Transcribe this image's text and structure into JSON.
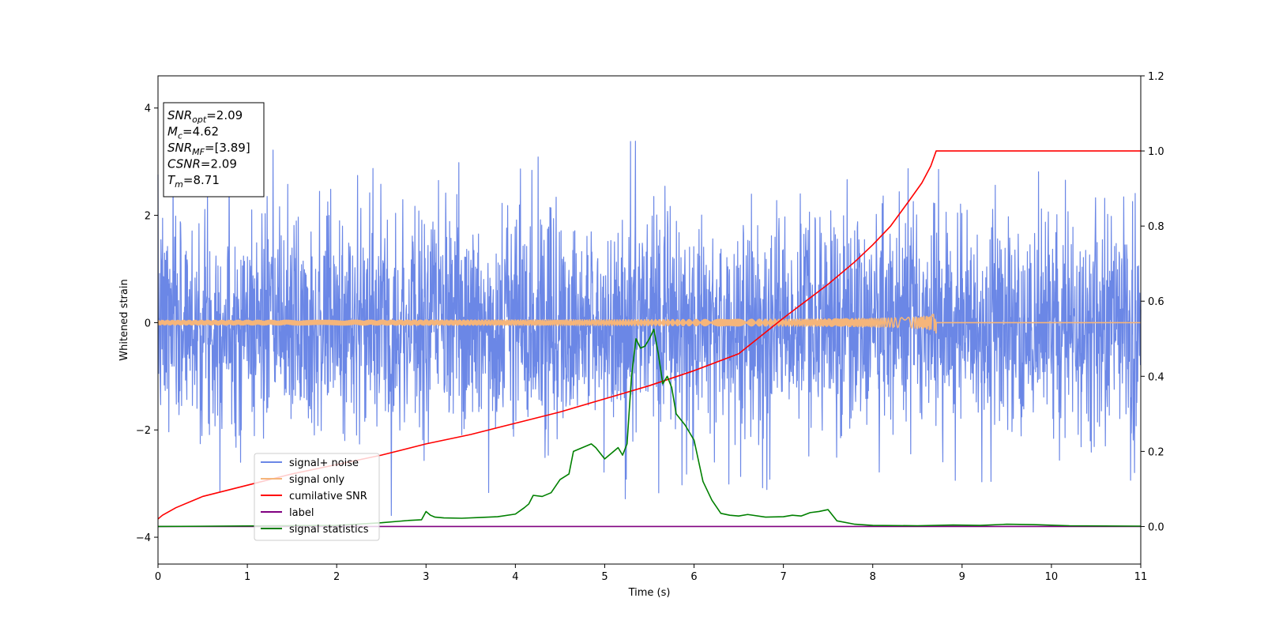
{
  "chart_data": {
    "type": "line",
    "xlabel": "Time (s)",
    "ylabel": "Whitened strain",
    "xlim": [
      0,
      11
    ],
    "ylim_left": [
      -4.5,
      4.6
    ],
    "ylim_right": [
      -0.1,
      1.2
    ],
    "x_ticks": [
      0,
      1,
      2,
      3,
      4,
      5,
      6,
      7,
      8,
      9,
      10,
      11
    ],
    "x_tick_labels": [
      "0",
      "1",
      "2",
      "3",
      "4",
      "5",
      "6",
      "7",
      "8",
      "9",
      "10",
      "11"
    ],
    "y_ticks_left": [
      -4,
      -2,
      0,
      2,
      4
    ],
    "y_tick_labels_left": [
      "−4",
      "−2",
      "0",
      "2",
      "4"
    ],
    "y_ticks_right": [
      0.0,
      0.2,
      0.4,
      0.6,
      0.8,
      1.0,
      1.2
    ],
    "y_tick_labels_right": [
      "0.0",
      "0.2",
      "0.4",
      "0.6",
      "0.8",
      "1.0",
      "1.2"
    ],
    "legend_position": "lower-left",
    "series": [
      {
        "name": "signal+ noise",
        "axis": "left",
        "color": "#6b87e6",
        "style": "noise",
        "noise": {
          "seed": 7,
          "count": 3000,
          "sigma": 1.0,
          "clip": [
            -4.1,
            4.2
          ]
        }
      },
      {
        "name": "signal only",
        "axis": "left",
        "color": "#f5b57a",
        "style": "chirp",
        "chirp": {
          "t_merge": 8.71,
          "peak_amplitude": 0.2
        }
      },
      {
        "name": "cumilative SNR",
        "axis": "right",
        "color": "#ff0000",
        "x": [
          0,
          0.05,
          0.2,
          0.5,
          1.0,
          1.5,
          2.0,
          2.5,
          3.0,
          3.5,
          4.0,
          4.5,
          5.0,
          5.5,
          6.0,
          6.5,
          7.0,
          7.5,
          7.8,
          8.0,
          8.2,
          8.4,
          8.55,
          8.65,
          8.71,
          11
        ],
        "values": [
          0.02,
          0.03,
          0.05,
          0.08,
          0.11,
          0.14,
          0.165,
          0.19,
          0.22,
          0.245,
          0.275,
          0.305,
          0.34,
          0.375,
          0.415,
          0.46,
          0.555,
          0.645,
          0.705,
          0.75,
          0.8,
          0.865,
          0.915,
          0.96,
          1.0,
          1.0
        ]
      },
      {
        "name": "label",
        "axis": "right",
        "color": "#800080",
        "x": [
          0,
          11
        ],
        "values": [
          0.0,
          0.0
        ]
      },
      {
        "name": "signal statistics",
        "axis": "right",
        "color": "#008000",
        "x": [
          0,
          2.0,
          2.5,
          2.8,
          2.95,
          3.0,
          3.05,
          3.1,
          3.2,
          3.4,
          3.6,
          3.8,
          4.0,
          4.1,
          4.15,
          4.2,
          4.3,
          4.4,
          4.5,
          4.6,
          4.65,
          4.7,
          4.8,
          4.85,
          4.9,
          5.0,
          5.1,
          5.15,
          5.2,
          5.25,
          5.3,
          5.35,
          5.4,
          5.45,
          5.5,
          5.55,
          5.6,
          5.65,
          5.7,
          5.75,
          5.8,
          5.9,
          6.0,
          6.1,
          6.2,
          6.3,
          6.4,
          6.5,
          6.6,
          6.8,
          7.0,
          7.1,
          7.2,
          7.3,
          7.4,
          7.5,
          7.6,
          7.8,
          8.0,
          8.5,
          8.9,
          9.2,
          9.5,
          9.8,
          10.2,
          11
        ],
        "values": [
          0.0,
          0.003,
          0.01,
          0.016,
          0.018,
          0.04,
          0.03,
          0.025,
          0.023,
          0.022,
          0.024,
          0.026,
          0.033,
          0.05,
          0.06,
          0.083,
          0.08,
          0.09,
          0.125,
          0.14,
          0.2,
          0.205,
          0.215,
          0.22,
          0.21,
          0.18,
          0.2,
          0.21,
          0.19,
          0.22,
          0.4,
          0.5,
          0.475,
          0.48,
          0.5,
          0.525,
          0.46,
          0.38,
          0.4,
          0.37,
          0.3,
          0.27,
          0.23,
          0.12,
          0.07,
          0.035,
          0.03,
          0.028,
          0.032,
          0.025,
          0.026,
          0.03,
          0.028,
          0.037,
          0.04,
          0.045,
          0.015,
          0.006,
          0.003,
          0.002,
          0.004,
          0.003,
          0.006,
          0.005,
          0.002,
          0.001
        ]
      }
    ],
    "annotation": [
      {
        "label": "SNR",
        "sub": "opt",
        "value": "=2.09"
      },
      {
        "label": "M",
        "sub": "c",
        "value": "=4.62"
      },
      {
        "label": "SNR",
        "sub": "MF",
        "value": "=[3.89]"
      },
      {
        "label": "CSNR",
        "sub": "",
        "value": "=2.09"
      },
      {
        "label": "T",
        "sub": "m",
        "value": "=8.71"
      }
    ]
  }
}
